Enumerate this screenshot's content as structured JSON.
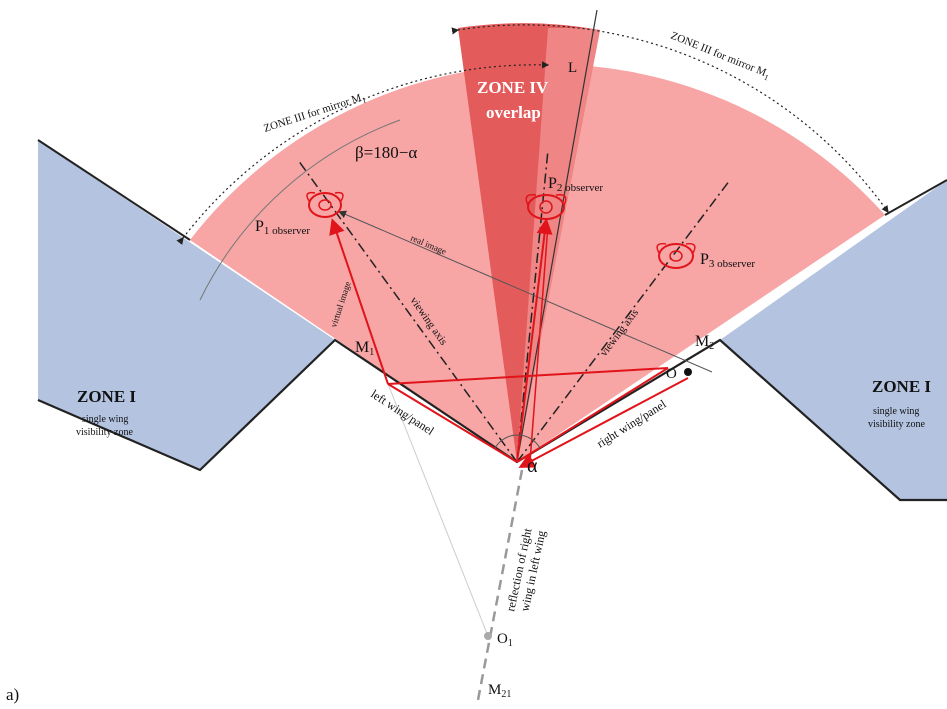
{
  "figure_label": "a)",
  "zones": {
    "zone1_left_title": "ZONE I",
    "zone1_left_sub1": "single wing",
    "zone1_left_sub2": "visibility zone",
    "zone1_right_title": "ZONE I",
    "zone1_right_sub1": "single wing",
    "zone1_right_sub2": "visibility zone",
    "zone3_left": "ZONE III for mirror M",
    "zone3_left_sub": "1",
    "zone3_right": "ZONE III for mirror M",
    "zone3_right_sub": "1",
    "zone4_title": "ZONE IV",
    "zone4_sub": "overlap"
  },
  "labels": {
    "beta": "β=180−α",
    "alpha": "α",
    "L": "L",
    "M1": "M",
    "M1_sub": "1",
    "M2": "M",
    "M2_sub": "2",
    "O": "O",
    "O1": "O",
    "O1_sub": "1",
    "M21": "M",
    "M21_sub": "21",
    "P1": "P",
    "P1_sub": "1 observer",
    "P2": "P",
    "P2_sub": "2 observer",
    "P3": "P",
    "P3_sub": "3 observer",
    "real_image": "real image",
    "virtual_image": "virtual image",
    "viewing_axis_left": "viewing axis",
    "viewing_axis_right": "viewing axis",
    "left_wing": "left wing/panel",
    "right_wing": "right wing/panel",
    "reflection_1": "reflection of right",
    "reflection_2": "wing in left wing"
  },
  "colors": {
    "zone1": "#b3c3e0",
    "zone3": "#f7a5a5",
    "zone4": "#e45b5b",
    "ray": "#e0141a",
    "axis": "#222222"
  }
}
